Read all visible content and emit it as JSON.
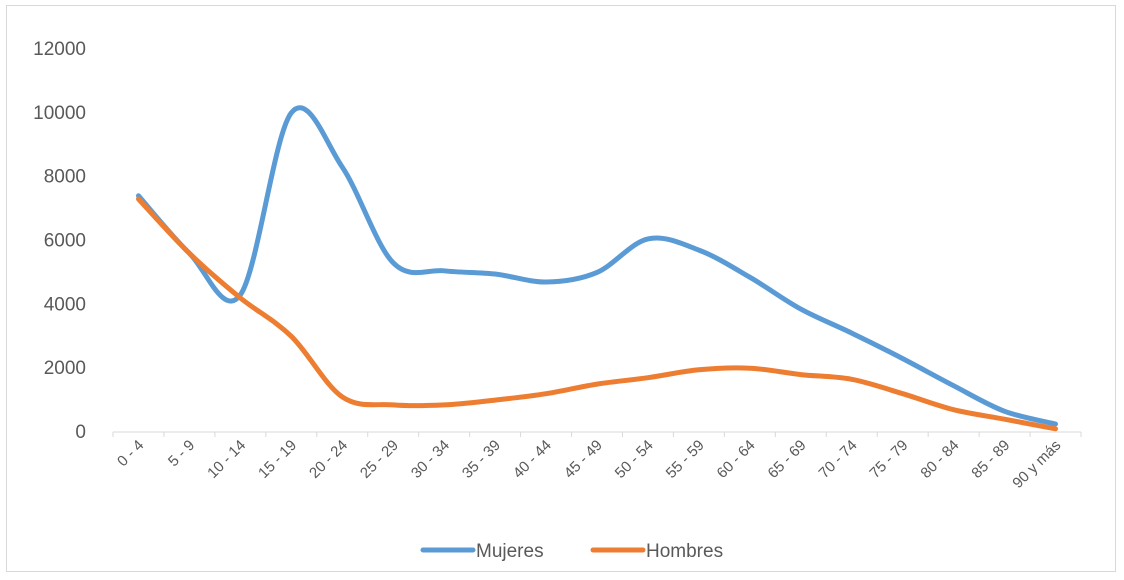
{
  "chart_data": {
    "type": "line",
    "categories": [
      "0 - 4",
      "5 - 9",
      "10 - 14",
      "15 - 19",
      "20 - 24",
      "25 - 29",
      "30 - 34",
      "35 - 39",
      "40 - 44",
      "45 - 49",
      "50 - 54",
      "55 - 59",
      "60 - 64",
      "65 - 69",
      "70 - 74",
      "75 - 79",
      "80 - 84",
      "85 - 89",
      "90 y más"
    ],
    "series": [
      {
        "name": "Mujeres",
        "color": "#5b9bd5",
        "values": [
          7400,
          5600,
          4300,
          10000,
          8300,
          5300,
          5050,
          4950,
          4700,
          5000,
          6050,
          5700,
          4850,
          3850,
          3100,
          2300,
          1450,
          650,
          250
        ]
      },
      {
        "name": "Hombres",
        "color": "#ed7d31",
        "values": [
          7300,
          5600,
          4200,
          3000,
          1100,
          850,
          850,
          1000,
          1200,
          1500,
          1700,
          1950,
          2000,
          1800,
          1650,
          1200,
          700,
          400,
          100
        ]
      }
    ],
    "yticks": [
      "0",
      "2000",
      "4000",
      "6000",
      "8000",
      "10000",
      "12000"
    ],
    "ylim": [
      0,
      12000
    ],
    "grid": false,
    "legend": "bottom"
  }
}
